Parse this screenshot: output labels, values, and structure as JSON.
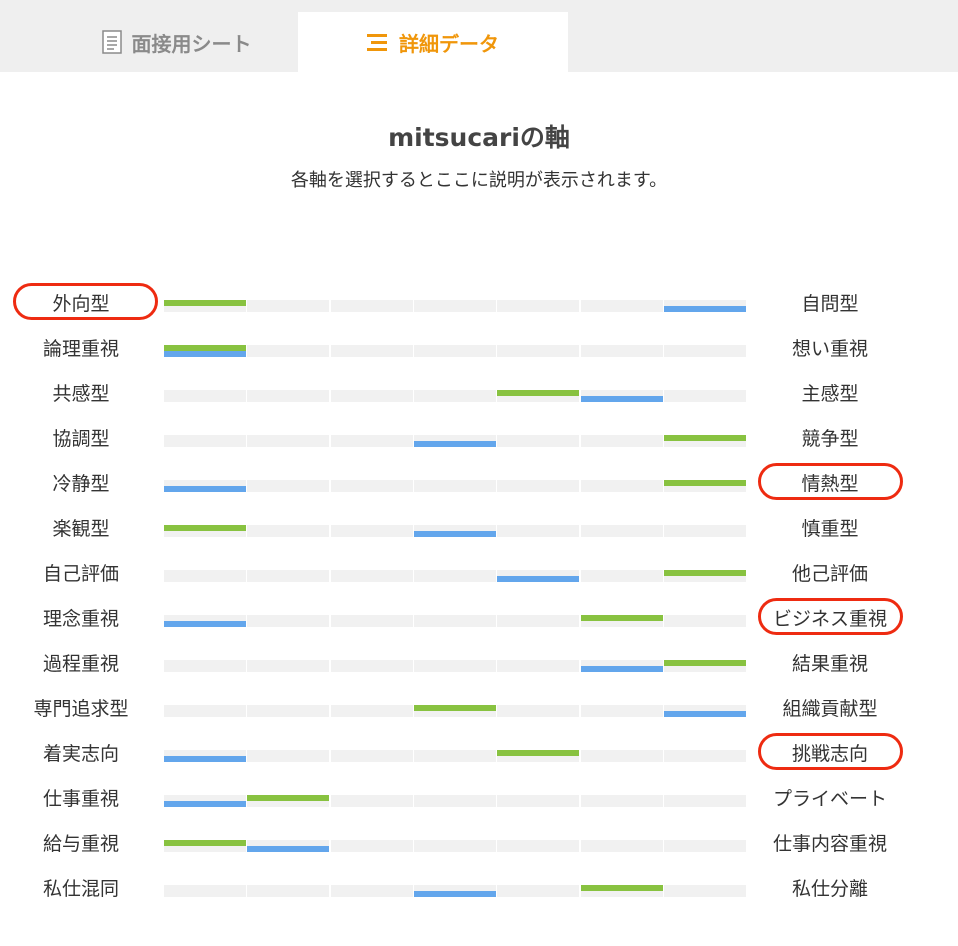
{
  "tabs": [
    {
      "label": "面接用シート",
      "icon": "document-icon",
      "active": false
    },
    {
      "label": "詳細データ",
      "icon": "list-icon",
      "active": true
    }
  ],
  "heading": "mitsucariの軸",
  "subheading": "各軸を選択するとここに説明が表示されます。",
  "colors": {
    "accent": "#f0960a",
    "green": "#88c240",
    "blue": "#63a6ec",
    "highlight": "#ee2b11",
    "track": "#f1f1f1"
  },
  "axes": [
    {
      "left": "外向型",
      "right": "自問型",
      "green": 1,
      "blue": 7,
      "circled": "left"
    },
    {
      "left": "論理重視",
      "right": "想い重視",
      "green": 1,
      "blue": 1,
      "circled": ""
    },
    {
      "left": "共感型",
      "right": "主感型",
      "green": 5,
      "blue": 6,
      "circled": ""
    },
    {
      "left": "協調型",
      "right": "競争型",
      "green": 7,
      "blue": 4,
      "circled": ""
    },
    {
      "left": "冷静型",
      "right": "情熱型",
      "green": 7,
      "blue": 1,
      "circled": "right"
    },
    {
      "left": "楽観型",
      "right": "慎重型",
      "green": 1,
      "blue": 4,
      "circled": ""
    },
    {
      "left": "自己評価",
      "right": "他己評価",
      "green": 7,
      "blue": 5,
      "circled": ""
    },
    {
      "left": "理念重視",
      "right": "ビジネス重視",
      "green": 6,
      "blue": 1,
      "circled": "right"
    },
    {
      "left": "過程重視",
      "right": "結果重視",
      "green": 7,
      "blue": 6,
      "circled": ""
    },
    {
      "left": "専門追求型",
      "right": "組織貢献型",
      "green": 4,
      "blue": 7,
      "circled": ""
    },
    {
      "left": "着実志向",
      "right": "挑戦志向",
      "green": 5,
      "blue": 1,
      "circled": "right"
    },
    {
      "left": "仕事重視",
      "right": "プライベート",
      "green": 2,
      "blue": 1,
      "circled": ""
    },
    {
      "left": "給与重視",
      "right": "仕事内容重視",
      "green": 1,
      "blue": 2,
      "circled": ""
    },
    {
      "left": "私仕混同",
      "right": "私仕分離",
      "green": 6,
      "blue": 4,
      "circled": ""
    }
  ]
}
